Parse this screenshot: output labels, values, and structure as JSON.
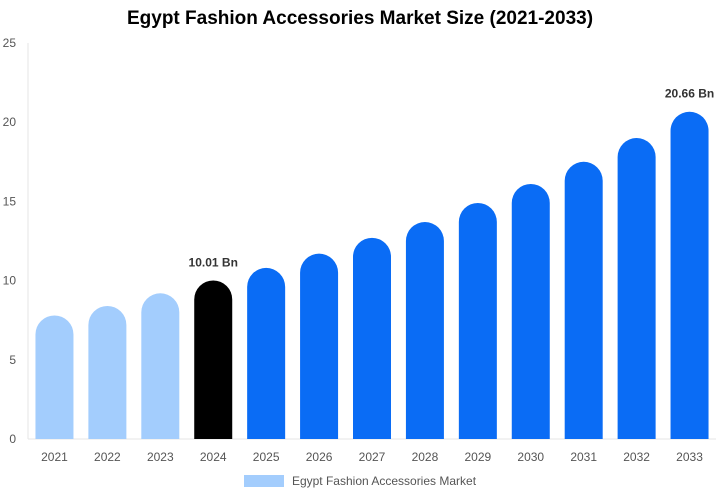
{
  "chart_data": {
    "type": "bar",
    "title": "Egypt Fashion Accessories Market Size (2021-2033)",
    "categories": [
      "2021",
      "2022",
      "2023",
      "2024",
      "2025",
      "2026",
      "2027",
      "2028",
      "2029",
      "2030",
      "2031",
      "2032",
      "2033"
    ],
    "series": [
      {
        "name": "Egypt Fashion Accessories Market",
        "values": [
          7.8,
          8.4,
          9.2,
          10.01,
          10.8,
          11.7,
          12.7,
          13.7,
          14.9,
          16.1,
          17.5,
          19.0,
          20.66
        ]
      }
    ],
    "ylim": [
      0,
      25
    ],
    "yticks": [
      0,
      5,
      10,
      15,
      20,
      25
    ],
    "data_labels": [
      {
        "category": "2024",
        "text": "10.01 Bn"
      },
      {
        "category": "2033",
        "text": "20.66 Bn"
      }
    ],
    "colors": {
      "historical": "#a3cdfd",
      "current": "#000000",
      "forecast": "#0a6cf5",
      "legend": "#a3cdfd",
      "axis": "#e6e6e6"
    },
    "legend_position": "bottom",
    "grid": false
  }
}
